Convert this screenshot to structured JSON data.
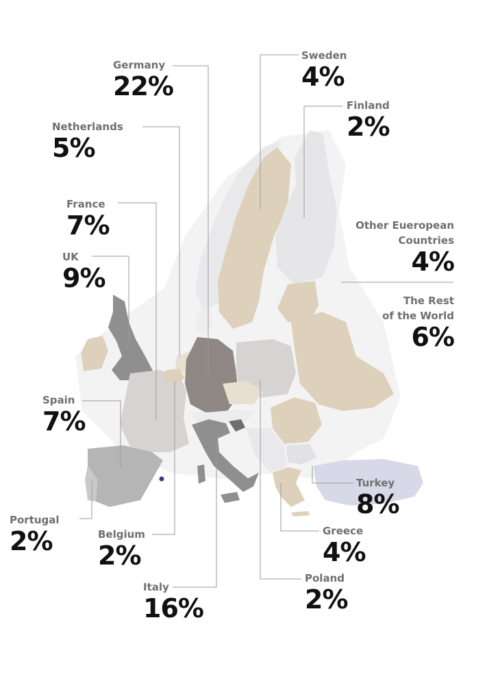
{
  "colors": {
    "germany": "#8e8783",
    "italy": "#8f8f8f",
    "uk": "#8f8f8f",
    "spain": "#b5b5b5",
    "france": "#d7d3d3",
    "tan": "#ddd1bc",
    "light": "#e8e8ea",
    "lighter": "#eeeeef",
    "turkey": "#d7d9e8",
    "accent_point": "#3a3a8a"
  },
  "countries": [
    {
      "id": "germany",
      "name": "Germany",
      "value": "22%"
    },
    {
      "id": "sweden",
      "name": "Sweden",
      "value": "4%"
    },
    {
      "id": "finland",
      "name": "Finland",
      "value": "2%"
    },
    {
      "id": "netherlands",
      "name": "Netherlands",
      "value": "5%"
    },
    {
      "id": "france",
      "name": "France",
      "value": "7%"
    },
    {
      "id": "uk",
      "name": "UK",
      "value": "9%"
    },
    {
      "id": "other",
      "name_line1": "Other Eueropean",
      "name_line2": "Countries",
      "value": "4%"
    },
    {
      "id": "rest",
      "name_line1": "The Rest",
      "name_line2": "of the World",
      "value": "6%"
    },
    {
      "id": "spain",
      "name": "Spain",
      "value": "7%"
    },
    {
      "id": "turkey",
      "name": "Turkey",
      "value": "8%"
    },
    {
      "id": "portugal",
      "name": "Portugal",
      "value": "2%"
    },
    {
      "id": "belgium",
      "name": "Belgium",
      "value": "2%"
    },
    {
      "id": "greece",
      "name": "Greece",
      "value": "4%"
    },
    {
      "id": "poland",
      "name": "Poland",
      "value": "2%"
    },
    {
      "id": "italy",
      "name": "Italy",
      "value": "16%"
    }
  ]
}
